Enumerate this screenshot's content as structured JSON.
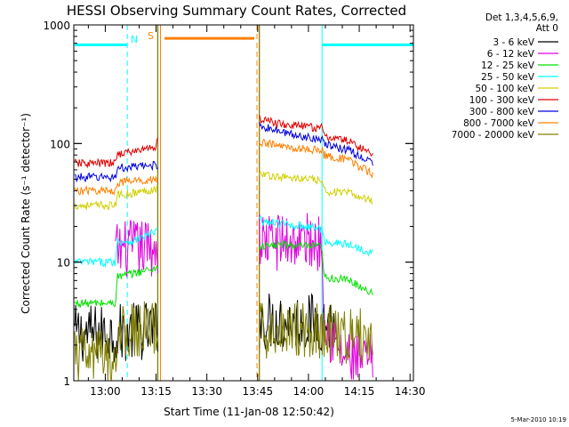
{
  "chart_data": {
    "type": "line",
    "title": "HESSI Observing Summary Count Rates, Corrected",
    "xlabel": "Start Time (11-Jan-08 12:50:42)",
    "ylabel": "Corrected Count Rate (s⁻¹ detector⁻¹)",
    "y_scale": "log",
    "ylim": [
      1,
      1000
    ],
    "xlim_minutes": [
      770.7,
      871.0
    ],
    "x_ticks": [
      {
        "label": "13:00",
        "minute": 780
      },
      {
        "label": "13:15",
        "minute": 795
      },
      {
        "label": "13:30",
        "minute": 810
      },
      {
        "label": "13:45",
        "minute": 825
      },
      {
        "label": "14:00",
        "minute": 840
      },
      {
        "label": "14:15",
        "minute": 855
      },
      {
        "label": "14:30",
        "minute": 870
      }
    ],
    "y_ticks": [
      {
        "label": "1",
        "value": 1
      },
      {
        "label": "10",
        "value": 10
      },
      {
        "label": "100",
        "value": 100
      },
      {
        "label": "1000",
        "value": 1000
      }
    ],
    "legend_header": [
      "Det 1,3,4,5,6,9,",
      "Att 0"
    ],
    "legend_position": "right",
    "series": [
      {
        "name": "3 - 6 keV",
        "color": "#000000",
        "segments": [
          [
            [
              771,
              2.5
            ],
            [
              783,
              2.5
            ],
            [
              788,
              2.6
            ],
            [
              795,
              2.7
            ],
            [
              795.5,
              2.8
            ]
          ],
          [
            [
              825.5,
              3.2
            ],
            [
              832,
              3.2
            ],
            [
              840,
              3.1
            ],
            [
              844,
              3.1
            ],
            [
              848,
              3.0
            ]
          ]
        ]
      },
      {
        "name": "6 - 12 keV",
        "color": "#e000e0",
        "segments": [
          [
            [
              783,
              12.5
            ],
            [
              788,
              13
            ],
            [
              795.5,
              13.5
            ]
          ],
          [
            [
              825.5,
              15
            ],
            [
              832,
              15
            ],
            [
              840,
              15
            ],
            [
              844,
              14.5
            ],
            [
              845,
              3
            ],
            [
              850,
              1.6
            ],
            [
              857,
              1.4
            ],
            [
              859,
              1.5
            ]
          ]
        ]
      },
      {
        "name": "12 - 25 keV",
        "color": "#00e000",
        "segments": [
          [
            [
              771,
              4.5
            ],
            [
              783,
              4.5
            ],
            [
              783.5,
              7.5
            ],
            [
              788,
              8
            ],
            [
              795.5,
              9
            ]
          ],
          [
            [
              825.5,
              13.5
            ],
            [
              832,
              14
            ],
            [
              840,
              13.5
            ],
            [
              844,
              13.5
            ],
            [
              844.5,
              7.5
            ],
            [
              852,
              7
            ],
            [
              859,
              5.5
            ]
          ]
        ]
      },
      {
        "name": "25 - 50 keV",
        "color": "#00ffff",
        "segments": [
          [
            [
              771,
              10
            ],
            [
              783,
              10
            ],
            [
              783.5,
              15
            ],
            [
              788,
              15
            ],
            [
              795,
              18
            ],
            [
              795.5,
              19
            ]
          ],
          [
            [
              825.5,
              24
            ],
            [
              826,
              22
            ],
            [
              832,
              21
            ],
            [
              840,
              20
            ],
            [
              844,
              19
            ],
            [
              844.5,
              15
            ],
            [
              852,
              14
            ],
            [
              859,
              12
            ]
          ]
        ]
      },
      {
        "name": "50 - 100 keV",
        "color": "#d0d000",
        "segments": [
          [
            [
              771,
              30
            ],
            [
              783,
              30
            ],
            [
              783.5,
              37
            ],
            [
              788,
              38
            ],
            [
              795.5,
              42
            ]
          ],
          [
            [
              825.5,
              58
            ],
            [
              826,
              55
            ],
            [
              832,
              52
            ],
            [
              840,
              50
            ],
            [
              844,
              48
            ],
            [
              844.5,
              40
            ],
            [
              852,
              38
            ],
            [
              859,
              33
            ]
          ]
        ]
      },
      {
        "name": "100 - 300 keV",
        "color": "#e00000",
        "segments": [
          [
            [
              771,
              68
            ],
            [
              783,
              68
            ],
            [
              783.5,
              82
            ],
            [
              788,
              85
            ],
            [
              795,
              95
            ],
            [
              795.5,
              105
            ]
          ],
          [
            [
              825.5,
              165
            ],
            [
              826,
              160
            ],
            [
              832,
              145
            ],
            [
              838,
              140
            ],
            [
              844,
              135
            ],
            [
              844.5,
              115
            ],
            [
              852,
              105
            ],
            [
              859,
              80
            ]
          ]
        ]
      },
      {
        "name": "300 - 800 keV",
        "color": "#0000e0",
        "segments": [
          [
            [
              771,
              52
            ],
            [
              783,
              52
            ],
            [
              783.5,
              62
            ],
            [
              788,
              63
            ],
            [
              795.5,
              66
            ]
          ],
          [
            [
              825.5,
              150
            ],
            [
              826,
              140
            ],
            [
              832,
              125
            ],
            [
              838,
              115
            ],
            [
              844,
              110
            ],
            [
              844.5,
              98
            ],
            [
              852,
              88
            ],
            [
              859,
              68
            ]
          ]
        ]
      },
      {
        "name": "800 - 7000 keV",
        "color": "#ff8000",
        "segments": [
          [
            [
              771,
              40
            ],
            [
              783,
              40
            ],
            [
              783.5,
              47
            ],
            [
              788,
              48
            ],
            [
              795.5,
              50
            ]
          ],
          [
            [
              825.5,
              105
            ],
            [
              826,
              102
            ],
            [
              832,
              95
            ],
            [
              838,
              90
            ],
            [
              844,
              88
            ],
            [
              844.5,
              80
            ],
            [
              852,
              72
            ],
            [
              859,
              55
            ]
          ]
        ]
      },
      {
        "name": "7000 - 20000 keV",
        "color": "#808000",
        "segments": [
          [
            [
              771,
              1.6
            ],
            [
              783,
              1.6
            ],
            [
              783.5,
              2.5
            ],
            [
              788,
              2.6
            ],
            [
              795.5,
              2.8
            ]
          ],
          [
            [
              825.5,
              2.6
            ],
            [
              832,
              2.8
            ],
            [
              840,
              2.8
            ],
            [
              844,
              2.7
            ],
            [
              845,
              2.6
            ],
            [
              852,
              2.4
            ],
            [
              859,
              2.3
            ]
          ]
        ]
      }
    ],
    "annotations": {
      "cyan_flag_lines": [
        [
          771,
          786.5
        ],
        [
          844,
          871
        ]
      ],
      "cyan_flag_level": 680,
      "orange_flag_line": [
        797.5,
        824
      ],
      "orange_flag_level": 770,
      "cyan_dashed_at": [
        786.5,
        871
      ],
      "cyan_solid_at": [
        844
      ],
      "orange_solid_at": [
        796.3
      ],
      "orange_dashed_at": [
        824.8
      ],
      "olive_vertical_at": [
        795.5,
        825.5
      ],
      "label_N": "N",
      "label_N_minute": 787.5,
      "label_S": "S",
      "label_S_minute": 792.5
    },
    "timestamp": "5-Mar-2010 10:19"
  }
}
